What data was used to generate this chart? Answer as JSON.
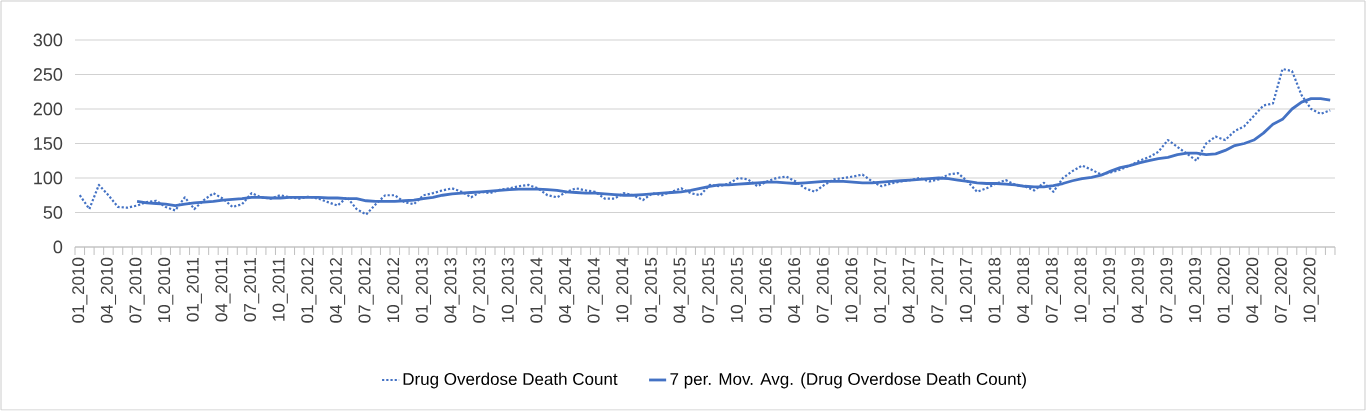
{
  "chart_data": {
    "type": "line",
    "categories": [
      "01_2010",
      null,
      null,
      "04_2010",
      null,
      null,
      "07_2010",
      null,
      null,
      "10_2010",
      null,
      null,
      "01_2011",
      null,
      null,
      "04_2011",
      null,
      null,
      "07_2011",
      null,
      null,
      "10_2011",
      null,
      null,
      "01_2012",
      null,
      null,
      "04_2012",
      null,
      null,
      "07_2012",
      null,
      null,
      "10_2012",
      null,
      null,
      "01_2013",
      null,
      null,
      "04_2013",
      null,
      null,
      "07_2013",
      null,
      null,
      "10_2013",
      null,
      null,
      "01_2014",
      null,
      null,
      "04_2014",
      null,
      null,
      "07_2014",
      null,
      null,
      "10_2014",
      null,
      null,
      "01_2015",
      null,
      null,
      "04_2015",
      null,
      null,
      "07_2015",
      null,
      null,
      "10_2015",
      null,
      null,
      "01_2016",
      null,
      null,
      "04_2016",
      null,
      null,
      "07_2016",
      null,
      null,
      "10_2016",
      null,
      null,
      "01_2017",
      null,
      null,
      "04_2017",
      null,
      null,
      "07_2017",
      null,
      null,
      "10_2017",
      null,
      null,
      "01_2018",
      null,
      null,
      "04_2018",
      null,
      null,
      "07_2018",
      null,
      null,
      "10_2018",
      null,
      null,
      "01_2019",
      null,
      null,
      "04_2019",
      null,
      null,
      "07_2019",
      null,
      null,
      "10_2019",
      null,
      null,
      "01_2020",
      null,
      null,
      "04_2020",
      null,
      null,
      "07_2020",
      null,
      null,
      "10_2020",
      null,
      null
    ],
    "series": [
      {
        "name": "Drug Overdose Death Count",
        "color": "#4472c4",
        "line_style": "dotted",
        "values": [
          75,
          55,
          90,
          75,
          58,
          57,
          60,
          65,
          67,
          58,
          53,
          72,
          55,
          68,
          78,
          70,
          58,
          62,
          78,
          72,
          70,
          75,
          72,
          70,
          73,
          70,
          65,
          60,
          72,
          55,
          47,
          62,
          75,
          75,
          65,
          62,
          75,
          78,
          82,
          85,
          80,
          72,
          80,
          78,
          83,
          85,
          88,
          90,
          85,
          75,
          72,
          80,
          85,
          82,
          80,
          70,
          70,
          78,
          75,
          68,
          78,
          75,
          80,
          85,
          78,
          75,
          90,
          88,
          92,
          100,
          98,
          88,
          95,
          100,
          102,
          95,
          85,
          80,
          90,
          98,
          100,
          102,
          105,
          95,
          88,
          92,
          95,
          97,
          100,
          95,
          98,
          105,
          107,
          95,
          80,
          85,
          92,
          97,
          90,
          88,
          82,
          93,
          80,
          100,
          110,
          118,
          112,
          105,
          108,
          112,
          118,
          125,
          130,
          138,
          155,
          145,
          135,
          125,
          150,
          160,
          155,
          168,
          175,
          190,
          205,
          208,
          258,
          255,
          220,
          200,
          193,
          198
        ]
      },
      {
        "name": "7 per. Mov. Avg. (Drug Overdose Death Count)",
        "color": "#4472c4",
        "line_style": "solid",
        "values": [
          null,
          null,
          null,
          null,
          null,
          null,
          66,
          64,
          63,
          62,
          60,
          62,
          64,
          65,
          66,
          68,
          69,
          70,
          72,
          72,
          71,
          71,
          72,
          72,
          72,
          72,
          71,
          71,
          70,
          70,
          67,
          66,
          66,
          66,
          67,
          68,
          70,
          72,
          75,
          77,
          78,
          79,
          80,
          81,
          82,
          83,
          84,
          84,
          84,
          83,
          82,
          80,
          79,
          78,
          78,
          77,
          76,
          75,
          75,
          76,
          77,
          78,
          79,
          80,
          82,
          85,
          88,
          90,
          90,
          91,
          92,
          93,
          94,
          94,
          93,
          92,
          93,
          94,
          95,
          95,
          95,
          94,
          93,
          93,
          94,
          95,
          96,
          97,
          98,
          99,
          100,
          99,
          97,
          95,
          93,
          92,
          92,
          91,
          90,
          88,
          87,
          87,
          89,
          92,
          96,
          99,
          101,
          104,
          110,
          115,
          118,
          122,
          125,
          128,
          130,
          134,
          136,
          136,
          134,
          135,
          140,
          147,
          150,
          155,
          165,
          178,
          185,
          200,
          210,
          215,
          215,
          213
        ]
      }
    ],
    "ylim": [
      0,
      300
    ],
    "yticks": [
      0,
      50,
      100,
      150,
      200,
      250,
      300
    ],
    "grid": "y",
    "legend": "bottom"
  }
}
